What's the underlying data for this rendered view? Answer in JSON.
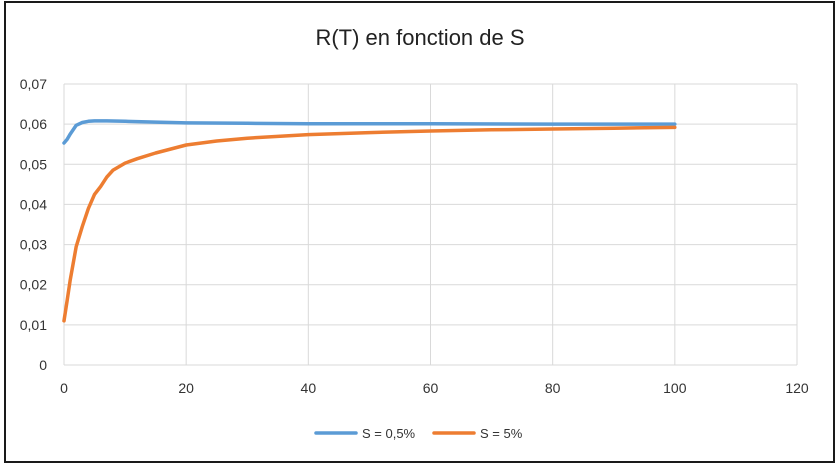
{
  "chart_data": {
    "type": "line",
    "title": "R(T) en fonction de S",
    "xlabel": "",
    "ylabel": "",
    "xlim": [
      0,
      120
    ],
    "ylim": [
      0,
      0.07
    ],
    "x_ticks": [
      "0",
      "20",
      "40",
      "60",
      "80",
      "100",
      "120"
    ],
    "y_ticks": [
      "0",
      "0,01",
      "0,02",
      "0,03",
      "0,04",
      "0,05",
      "0,06",
      "0,07"
    ],
    "grid": true,
    "legend_position": "bottom",
    "series": [
      {
        "name": "S = 0,5%",
        "color": "#5b9bd5",
        "points": [
          [
            0,
            0.0553
          ],
          [
            0.5,
            0.0562
          ],
          [
            1,
            0.0575
          ],
          [
            2,
            0.0597
          ],
          [
            3,
            0.0604
          ],
          [
            4,
            0.0607
          ],
          [
            5,
            0.0608
          ],
          [
            7,
            0.0608
          ],
          [
            10,
            0.0607
          ],
          [
            15,
            0.0605
          ],
          [
            20,
            0.0603
          ],
          [
            30,
            0.0602
          ],
          [
            40,
            0.0601
          ],
          [
            60,
            0.0601
          ],
          [
            80,
            0.06
          ],
          [
            100,
            0.06
          ]
        ]
      },
      {
        "name": "S = 5%",
        "color": "#ed7d31",
        "points": [
          [
            0,
            0.011
          ],
          [
            0.5,
            0.016
          ],
          [
            1,
            0.021
          ],
          [
            2,
            0.0295
          ],
          [
            3,
            0.0345
          ],
          [
            4,
            0.039
          ],
          [
            5,
            0.0425
          ],
          [
            6,
            0.0445
          ],
          [
            7,
            0.0468
          ],
          [
            8,
            0.0485
          ],
          [
            10,
            0.0503
          ],
          [
            12,
            0.0514
          ],
          [
            15,
            0.0528
          ],
          [
            20,
            0.0548
          ],
          [
            25,
            0.0558
          ],
          [
            30,
            0.0565
          ],
          [
            40,
            0.0574
          ],
          [
            50,
            0.0579
          ],
          [
            60,
            0.0583
          ],
          [
            70,
            0.0586
          ],
          [
            80,
            0.0588
          ],
          [
            90,
            0.059
          ],
          [
            100,
            0.0592
          ]
        ]
      }
    ]
  }
}
